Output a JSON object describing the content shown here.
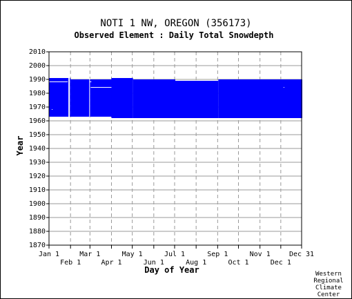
{
  "chart_data": {
    "type": "area",
    "title": "NOTI 1 NW, OREGON   (356173)",
    "subtitle": "Observed Element : Daily Total Snowdepth",
    "xlabel": "Day of Year",
    "ylabel": "Year",
    "ylim": [
      1870,
      2010
    ],
    "xlim": [
      1,
      365
    ],
    "y_ticks": [
      1870,
      1880,
      1890,
      1900,
      1910,
      1920,
      1930,
      1940,
      1950,
      1960,
      1970,
      1980,
      1990,
      2000,
      2010
    ],
    "x_ticks_top": [
      {
        "label": "Jan 1",
        "day": 1
      },
      {
        "label": "Mar 1",
        "day": 60
      },
      {
        "label": "May 1",
        "day": 121
      },
      {
        "label": "Jul 1",
        "day": 182
      },
      {
        "label": "Sep 1",
        "day": 244
      },
      {
        "label": "Nov 1",
        "day": 305
      },
      {
        "label": "Dec 31",
        "day": 365
      }
    ],
    "x_ticks_bottom": [
      {
        "label": "Feb 1",
        "day": 32
      },
      {
        "label": "Apr 1",
        "day": 91
      },
      {
        "label": "Jun 1",
        "day": 152
      },
      {
        "label": "Aug 1",
        "day": 213
      },
      {
        "label": "Oct 1",
        "day": 274
      },
      {
        "label": "Dec 1",
        "day": 335
      }
    ],
    "grid": true,
    "fill_color": "#0000ff",
    "coverage": [
      {
        "day_start": 1,
        "day_end": 31,
        "year_start": 1963,
        "year_end": 1991
      },
      {
        "day_start": 32,
        "day_end": 59,
        "year_start": 1963,
        "year_end": 1990
      },
      {
        "day_start": 60,
        "day_end": 90,
        "year_start": 1963,
        "year_end": 1990
      },
      {
        "day_start": 91,
        "day_end": 121,
        "year_start": 1962,
        "year_end": 1991
      },
      {
        "day_start": 122,
        "day_end": 182,
        "year_start": 1962,
        "year_end": 1990
      },
      {
        "day_start": 183,
        "day_end": 244,
        "year_start": 1962,
        "year_end": 1989
      },
      {
        "day_start": 245,
        "day_end": 365,
        "year_start": 1962,
        "year_end": 1990
      }
    ],
    "gaps": [
      {
        "day_start": 1,
        "day_end": 28,
        "year_start": 1988,
        "year_end": 1988.5
      },
      {
        "day_start": 61,
        "day_end": 91,
        "year_start": 1984,
        "year_end": 1984.5
      },
      {
        "day_start": 29,
        "day_end": 31,
        "year_start": 1963,
        "year_end": 1991
      },
      {
        "day_start": 59,
        "day_end": 60,
        "year_start": 1963,
        "year_end": 1991
      },
      {
        "day_start": 5,
        "day_end": 6,
        "year_start": 1968,
        "year_end": 1968.5
      },
      {
        "day_start": 60,
        "day_end": 62,
        "year_start": 1988,
        "year_end": 1988.5
      },
      {
        "day_start": 339,
        "day_end": 340,
        "year_start": 1984,
        "year_end": 1984.5
      }
    ]
  },
  "credit": {
    "lines": [
      "Western",
      "Regional",
      "Climate",
      "Center"
    ]
  }
}
